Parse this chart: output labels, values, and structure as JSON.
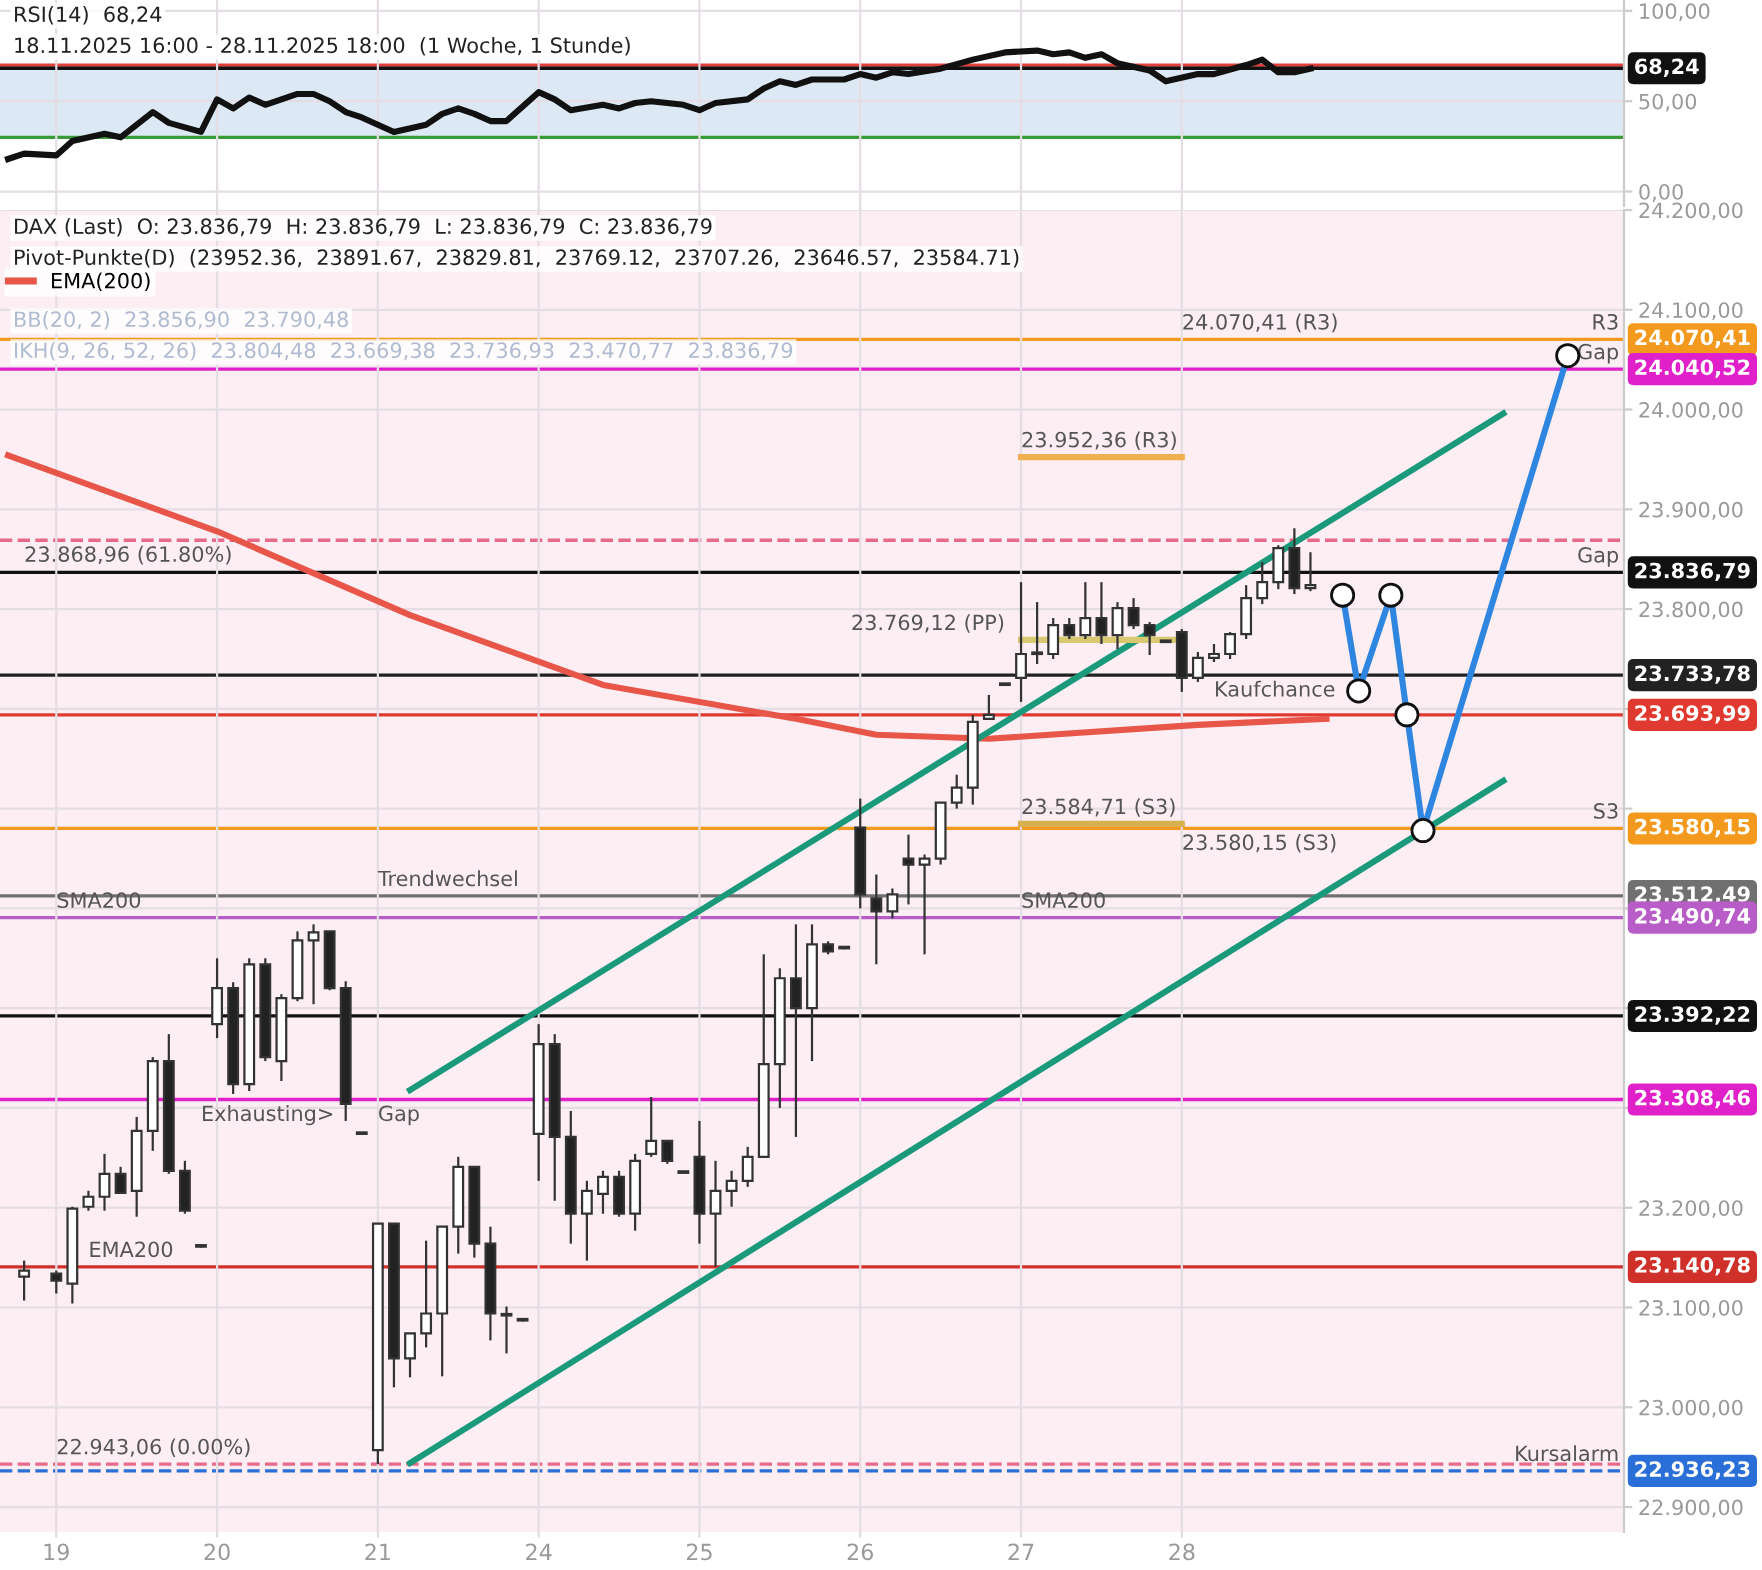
{
  "chart_data": [
    {
      "type": "line",
      "title": "RSI(14)  68,24",
      "subtitle": "18.11.2025 16:00 - 28.11.2025 18:00  (1 Woche, 1 Stunde)",
      "categories": [
        null,
        null,
        null,
        "19",
        null,
        null,
        null,
        null,
        null,
        null,
        null,
        null,
        null,
        "20",
        null,
        null,
        null,
        null,
        null,
        null,
        null,
        null,
        null,
        "21",
        null,
        null,
        null,
        null,
        null,
        null,
        null,
        null,
        null,
        "24",
        null,
        null,
        null,
        null,
        null,
        null,
        null,
        null,
        null,
        "25",
        null,
        null,
        null,
        null,
        null,
        null,
        null,
        null,
        null,
        "26",
        null,
        null,
        null,
        null,
        null,
        null,
        null,
        null,
        null,
        "27",
        null,
        null,
        null,
        null,
        null,
        null,
        null,
        null,
        null,
        "28",
        null,
        null,
        null,
        null,
        null,
        null,
        null,
        null,
        null,
        null,
        null,
        null,
        null,
        null,
        null,
        null,
        null,
        null,
        null,
        null,
        null,
        null,
        null,
        null,
        null,
        null,
        null
      ],
      "ylim": [
        -8,
        106
      ],
      "yticks": [
        {
          "value": 0,
          "label": "0,00"
        },
        {
          "value": 50,
          "label": "50,00"
        },
        {
          "value": 100,
          "label": "100,00"
        }
      ],
      "tick_labels": "y",
      "grid": true,
      "bands": [
        {
          "axis": "y",
          "from": 30,
          "to": 70,
          "color": "#dce8f4"
        }
      ],
      "ref_lines": [
        {
          "axis": "y",
          "value": 70,
          "color": "#e0403a"
        },
        {
          "axis": "y",
          "value": 30,
          "color": "#3a9a3a"
        },
        {
          "axis": "y",
          "value": 68.24,
          "label": "68,24",
          "color": "#111111"
        }
      ],
      "series": [
        {
          "color": "#111111",
          "values": [
            18,
            21,
            null,
            20,
            28,
            null,
            32,
            30,
            null,
            44,
            38,
            null,
            33,
            51,
            46,
            52,
            48,
            null,
            54,
            54,
            50,
            44,
            41,
            null,
            33,
            null,
            37,
            43,
            46,
            43,
            39,
            39,
            null,
            55,
            51,
            45,
            null,
            48,
            46,
            49,
            50,
            null,
            48,
            45,
            49,
            null,
            51,
            57,
            61,
            59,
            62,
            null,
            62,
            65,
            63,
            66,
            65,
            null,
            68,
            null,
            73,
            null,
            77,
            null,
            78,
            76,
            77,
            74,
            76,
            71,
            null,
            67,
            61,
            null,
            65,
            65,
            null,
            70,
            73,
            66,
            66,
            68,
            null,
            null,
            null,
            null,
            null,
            null,
            null,
            null,
            null,
            null,
            null,
            null,
            null,
            null,
            null,
            null,
            null,
            null,
            null
          ]
        }
      ]
    },
    {
      "type": "candlestick",
      "title": "DAX (Last)  O: 23.836,79  H: 23.836,79  L: 23.836,79  C: 23.836,79",
      "subtitle": "Pivot-Punkte(D)  (23952.36,  23891.67,  23829.81,  23769.12,  23707.26,  23646.57,  23584.71)",
      "legend": "top left",
      "categories": [
        null,
        null,
        null,
        "19",
        null,
        null,
        null,
        null,
        null,
        null,
        null,
        null,
        null,
        "20",
        null,
        null,
        null,
        null,
        null,
        null,
        null,
        null,
        null,
        "21",
        null,
        null,
        null,
        null,
        null,
        null,
        null,
        null,
        null,
        "24",
        null,
        null,
        null,
        null,
        null,
        null,
        null,
        null,
        null,
        "25",
        null,
        null,
        null,
        null,
        null,
        null,
        null,
        null,
        null,
        "26",
        null,
        null,
        null,
        null,
        null,
        null,
        null,
        null,
        null,
        "27",
        null,
        null,
        null,
        null,
        null,
        null,
        null,
        null,
        null,
        "28",
        null,
        null,
        null,
        null,
        null,
        null,
        null,
        null,
        null,
        null,
        null,
        null,
        null,
        null,
        null,
        null,
        null,
        null,
        null,
        null,
        null,
        null,
        null,
        null,
        null,
        null,
        null
      ],
      "ylim": [
        22875,
        24200
      ],
      "yticks": [
        {
          "value": 22900,
          "label": "22.900,00"
        },
        {
          "value": 23000,
          "label": "23.000,00"
        },
        {
          "value": 23100,
          "label": "23.100,00"
        },
        {
          "value": 23200,
          "label": "23.200,00"
        },
        {
          "value": 23300,
          "label": null
        },
        {
          "value": 23400,
          "label": null
        },
        {
          "value": 23500,
          "label": null
        },
        {
          "value": 23600,
          "label": null
        },
        {
          "value": 23700,
          "label": null
        },
        {
          "value": 23800,
          "label": "23.800,00"
        },
        {
          "value": 23900,
          "label": "23.900,00"
        },
        {
          "value": 24000,
          "label": "24.000,00"
        },
        {
          "value": 24100,
          "label": "24.100,00"
        },
        {
          "value": 24200,
          "label": "24.200,00"
        }
      ],
      "grid": true,
      "ohlc": [
        null,
        [
          23131,
          23147,
          23107,
          23137
        ],
        null,
        [
          23134,
          23137,
          23114,
          23127
        ],
        [
          23124,
          23201,
          23104,
          23199
        ],
        [
          23201,
          23217,
          23197,
          23211
        ],
        [
          23211,
          23254,
          23197,
          23234
        ],
        [
          23234,
          23241,
          23214,
          23215
        ],
        [
          23217,
          23291,
          23191,
          23277
        ],
        [
          23277,
          23351,
          23257,
          23347
        ],
        [
          23347,
          23374,
          23234,
          23237
        ],
        [
          23237,
          23247,
          23194,
          23197
        ],
        [
          23161,
          23162,
          23160,
          23161
        ],
        [
          23384,
          23450,
          23370,
          23420
        ],
        [
          23420,
          23426,
          23314,
          23324
        ],
        [
          23324,
          23450,
          23317,
          23444
        ],
        [
          23444,
          23450,
          23347,
          23351
        ],
        [
          23347,
          23414,
          23327,
          23410
        ],
        [
          23410,
          23477,
          23407,
          23468
        ],
        [
          23468,
          23484,
          23404,
          23476
        ],
        [
          23477,
          23477,
          23418,
          23420
        ],
        [
          23420,
          23427,
          23287,
          23304
        ],
        [
          23274,
          23275,
          23273,
          23274
        ],
        [
          22957,
          23184,
          22943,
          23184
        ],
        [
          23184,
          23184,
          23020,
          23049
        ],
        [
          23049,
          23074,
          23030,
          23074
        ],
        [
          23074,
          23167,
          23060,
          23094
        ],
        [
          23094,
          23181,
          23031,
          23181
        ],
        [
          23181,
          23251,
          23154,
          23241
        ],
        [
          23241,
          23241,
          23150,
          23164
        ],
        [
          23164,
          23181,
          23067,
          23094
        ],
        [
          23092,
          23101,
          23054,
          23092
        ],
        [
          23087,
          23088,
          23086,
          23087
        ],
        [
          23274,
          23384,
          23227,
          23364
        ],
        [
          23364,
          23374,
          23207,
          23271
        ],
        [
          23271,
          23297,
          23164,
          23194
        ],
        [
          23194,
          23227,
          23147,
          23217
        ],
        [
          23214,
          23237,
          23194,
          23231
        ],
        [
          23231,
          23237,
          23191,
          23194
        ],
        [
          23194,
          23254,
          23177,
          23247
        ],
        [
          23254,
          23311,
          23251,
          23267
        ],
        [
          23267,
          23267,
          23244,
          23247
        ],
        [
          23235,
          23236,
          23234,
          23235
        ],
        [
          23251,
          23287,
          23164,
          23194
        ],
        [
          23194,
          23247,
          23141,
          23217
        ],
        [
          23217,
          23237,
          23201,
          23227
        ],
        [
          23227,
          23261,
          23221,
          23251
        ],
        [
          23251,
          23454,
          23251,
          23344
        ],
        [
          23344,
          23440,
          23300,
          23430
        ],
        [
          23430,
          23484,
          23271,
          23400
        ],
        [
          23400,
          23484,
          23347,
          23464
        ],
        [
          23464,
          23467,
          23454,
          23457
        ],
        [
          23460,
          23461,
          23459,
          23460
        ],
        [
          23581,
          23610,
          23500,
          23514
        ],
        [
          23510,
          23534,
          23444,
          23497
        ],
        [
          23497,
          23520,
          23490,
          23514
        ],
        [
          23550,
          23574,
          23504,
          23544
        ],
        [
          23544,
          23554,
          23454,
          23550
        ],
        [
          23550,
          23606,
          23544,
          23606
        ],
        [
          23606,
          23634,
          23600,
          23621
        ],
        [
          23621,
          23694,
          23604,
          23687
        ],
        [
          23690,
          23714,
          23690,
          23694
        ],
        [
          23724,
          23725,
          23723,
          23724
        ],
        [
          23731,
          23827,
          23707,
          23755
        ],
        [
          23755,
          23807,
          23745,
          23755
        ],
        [
          23755,
          23791,
          23750,
          23784
        ],
        [
          23784,
          23791,
          23770,
          23774
        ],
        [
          23774,
          23827,
          23770,
          23791
        ],
        [
          23791,
          23827,
          23765,
          23774
        ],
        [
          23774,
          23807,
          23760,
          23801
        ],
        [
          23801,
          23811,
          23780,
          23784
        ],
        [
          23784,
          23787,
          23754,
          23774
        ],
        [
          23767,
          23768,
          23766,
          23767
        ],
        [
          23777,
          23780,
          23717,
          23731
        ],
        [
          23731,
          23757,
          23727,
          23751
        ],
        [
          23751,
          23765,
          23747,
          23755
        ],
        [
          23755,
          23777,
          23750,
          23775
        ],
        [
          23775,
          23824,
          23770,
          23811
        ],
        [
          23811,
          23847,
          23805,
          23827
        ],
        [
          23827,
          23864,
          23820,
          23861
        ],
        [
          23861,
          23881,
          23815,
          23821
        ],
        [
          23821,
          23857,
          23818,
          23824
        ],
        null,
        null,
        null,
        null,
        null,
        null,
        null,
        null,
        null,
        null,
        null,
        null,
        null,
        null,
        null,
        null,
        null,
        null,
        null
      ],
      "series": [
        {
          "type": "line",
          "name": "EMA(200)",
          "color": "#e8564a",
          "values": [
            23954,
            null,
            null,
            null,
            null,
            null,
            null,
            null,
            null,
            null,
            null,
            null,
            null,
            23878,
            null,
            null,
            null,
            null,
            null,
            null,
            null,
            null,
            null,
            null,
            null,
            23794,
            null,
            null,
            null,
            null,
            null,
            null,
            null,
            null,
            null,
            null,
            null,
            23724,
            null,
            null,
            null,
            null,
            null,
            null,
            null,
            null,
            null,
            null,
            null,
            23690,
            null,
            null,
            null,
            null,
            23674,
            null,
            null,
            null,
            null,
            null,
            null,
            23670,
            null,
            null,
            null,
            null,
            null,
            null,
            null,
            null,
            null,
            null,
            null,
            null,
            23684,
            null,
            null,
            null,
            null,
            null,
            null,
            null,
            23690,
            null,
            null,
            null,
            null,
            null,
            null,
            null,
            null,
            null,
            null,
            null,
            null,
            null,
            null,
            null,
            null,
            null,
            null
          ]
        },
        {
          "type": "line",
          "color": "#1a9a7a",
          "values": [
            null,
            null,
            null,
            null,
            null,
            null,
            null,
            null,
            null,
            null,
            null,
            null,
            null,
            null,
            null,
            null,
            null,
            null,
            null,
            null,
            null,
            null,
            null,
            null,
            null,
            22944,
            null,
            null,
            null,
            null,
            null,
            null,
            null,
            null,
            null,
            null,
            null,
            null,
            null,
            null,
            null,
            null,
            null,
            null,
            null,
            null,
            null,
            null,
            null,
            null,
            null,
            null,
            null,
            null,
            null,
            null,
            null,
            null,
            null,
            null,
            null,
            null,
            null,
            null,
            null,
            null,
            null,
            null,
            null,
            null,
            null,
            null,
            null,
            null,
            null,
            null,
            null,
            null,
            null,
            null,
            null,
            null,
            null,
            null,
            null,
            null,
            null,
            null,
            null,
            null,
            null,
            null,
            null,
            23628,
            null,
            null,
            null,
            null,
            null,
            null,
            null
          ]
        },
        {
          "type": "line",
          "color": "#1a9a7a",
          "values": [
            null,
            null,
            null,
            null,
            null,
            null,
            null,
            null,
            null,
            null,
            null,
            null,
            null,
            null,
            null,
            null,
            null,
            null,
            null,
            null,
            null,
            null,
            null,
            null,
            null,
            23318,
            null,
            null,
            null,
            null,
            null,
            null,
            null,
            null,
            null,
            null,
            null,
            null,
            null,
            null,
            null,
            null,
            null,
            null,
            null,
            null,
            null,
            null,
            null,
            null,
            null,
            null,
            null,
            null,
            null,
            null,
            null,
            null,
            null,
            null,
            null,
            null,
            null,
            null,
            null,
            null,
            null,
            null,
            null,
            null,
            null,
            null,
            null,
            null,
            null,
            null,
            null,
            null,
            null,
            null,
            null,
            null,
            null,
            null,
            null,
            null,
            null,
            null,
            null,
            null,
            null,
            null,
            null,
            23996,
            null,
            null,
            null,
            null,
            null,
            null,
            null
          ]
        },
        {
          "type": "line",
          "color": "#f0b050",
          "values": [
            null,
            null,
            null,
            null,
            null,
            null,
            null,
            null,
            null,
            null,
            null,
            null,
            null,
            null,
            null,
            null,
            null,
            null,
            null,
            null,
            null,
            null,
            null,
            null,
            null,
            null,
            null,
            null,
            null,
            null,
            null,
            null,
            null,
            null,
            null,
            null,
            null,
            null,
            null,
            null,
            null,
            null,
            null,
            null,
            null,
            null,
            null,
            null,
            null,
            null,
            null,
            null,
            null,
            null,
            null,
            null,
            null,
            null,
            null,
            null,
            null,
            null,
            null,
            23952.36,
            null,
            null,
            null,
            null,
            null,
            null,
            null,
            null,
            null,
            23952.36,
            null,
            null,
            null,
            null,
            null,
            null,
            null,
            null,
            null,
            null,
            null,
            null,
            null,
            null,
            null,
            null,
            null,
            null,
            null,
            null,
            null,
            null,
            null,
            null,
            null,
            null,
            null
          ]
        },
        {
          "type": "line",
          "color": "#d8c870",
          "values": [
            null,
            null,
            null,
            null,
            null,
            null,
            null,
            null,
            null,
            null,
            null,
            null,
            null,
            null,
            null,
            null,
            null,
            null,
            null,
            null,
            null,
            null,
            null,
            null,
            null,
            null,
            null,
            null,
            null,
            null,
            null,
            null,
            null,
            null,
            null,
            null,
            null,
            null,
            null,
            null,
            null,
            null,
            null,
            null,
            null,
            null,
            null,
            null,
            null,
            null,
            null,
            null,
            null,
            null,
            null,
            null,
            null,
            null,
            null,
            null,
            null,
            null,
            null,
            23769.12,
            null,
            null,
            null,
            null,
            null,
            null,
            null,
            null,
            null,
            23769.12,
            null,
            null,
            null,
            null,
            null,
            null,
            null,
            null,
            null,
            null,
            null,
            null,
            null,
            null,
            null,
            null,
            null,
            null,
            null,
            null,
            null,
            null,
            null,
            null,
            null,
            null,
            null
          ]
        },
        {
          "type": "line",
          "color": "#d8b050",
          "values": [
            null,
            null,
            null,
            null,
            null,
            null,
            null,
            null,
            null,
            null,
            null,
            null,
            null,
            null,
            null,
            null,
            null,
            null,
            null,
            null,
            null,
            null,
            null,
            null,
            null,
            null,
            null,
            null,
            null,
            null,
            null,
            null,
            null,
            null,
            null,
            null,
            null,
            null,
            null,
            null,
            null,
            null,
            null,
            null,
            null,
            null,
            null,
            null,
            null,
            null,
            null,
            null,
            null,
            null,
            null,
            null,
            null,
            null,
            null,
            null,
            null,
            null,
            null,
            23584.71,
            null,
            null,
            null,
            null,
            null,
            null,
            null,
            null,
            null,
            23584.71,
            null,
            null,
            null,
            null,
            null,
            null,
            null,
            null,
            null,
            null,
            null,
            null,
            null,
            null,
            null,
            null,
            null,
            null,
            null,
            null,
            null,
            null,
            null,
            null,
            null,
            null,
            null
          ]
        },
        {
          "type": "line",
          "color": "#2f86e0",
          "marker": "circle",
          "values": [
            null,
            null,
            null,
            null,
            null,
            null,
            null,
            null,
            null,
            null,
            null,
            null,
            null,
            null,
            null,
            null,
            null,
            null,
            null,
            null,
            null,
            null,
            null,
            null,
            null,
            null,
            null,
            null,
            null,
            null,
            null,
            null,
            null,
            null,
            null,
            null,
            null,
            null,
            null,
            null,
            null,
            null,
            null,
            null,
            null,
            null,
            null,
            null,
            null,
            null,
            null,
            null,
            null,
            null,
            null,
            null,
            null,
            null,
            null,
            null,
            null,
            null,
            null,
            null,
            null,
            null,
            null,
            null,
            null,
            null,
            null,
            null,
            null,
            null,
            null,
            null,
            null,
            null,
            null,
            null,
            null,
            null,
            null,
            23814,
            23718,
            null,
            23814,
            23694,
            23578,
            null,
            null,
            null,
            null,
            null,
            null,
            null,
            null,
            24054,
            null,
            null,
            null
          ]
        }
      ],
      "ref_lines": [
        {
          "axis": "y",
          "value": 24070.41,
          "label": "24.070,41",
          "color": "#f39a1e"
        },
        {
          "axis": "y",
          "value": 24040.52,
          "label": "24.040,52",
          "color": "#e020c8"
        },
        {
          "axis": "y",
          "value": 23868.96,
          "color": "#e86a8a",
          "line_style": "dashed"
        },
        {
          "axis": "y",
          "value": 23836.79,
          "label": "23.836,79",
          "color": "#111111"
        },
        {
          "axis": "y",
          "value": 23733.78,
          "label": "23.733,78",
          "color": "#222222"
        },
        {
          "axis": "y",
          "value": 23693.99,
          "label": "23.693,99",
          "color": "#e03a30"
        },
        {
          "axis": "y",
          "value": 23580.15,
          "label": "23.580,15",
          "color": "#f39a1e"
        },
        {
          "axis": "y",
          "value": 23512.49,
          "label": "23.512,49",
          "color": "#707070"
        },
        {
          "axis": "y",
          "value": 23490.74,
          "label": "23.490,74",
          "color": "#b85cc8"
        },
        {
          "axis": "y",
          "value": 23392.22,
          "label": "23.392,22",
          "color": "#111111"
        },
        {
          "axis": "y",
          "value": 23308.46,
          "label": "23.308,46",
          "color": "#e020c8"
        },
        {
          "axis": "y",
          "value": 23140.78,
          "label": "23.140,78",
          "color": "#d0302a"
        },
        {
          "axis": "y",
          "value": 22943.06,
          "color": "#e86a8a",
          "line_style": "dashed"
        },
        {
          "axis": "y",
          "value": 22936.23,
          "label": "22.936,23",
          "color": "#2a6fd8",
          "line_style": "dashed"
        }
      ],
      "annotations": [
        "BB(20, 2)  23.856,90  23.790,48",
        "IKH(9, 26, 52, 26)  23.804,48  23.669,38  23.736,93  23.470,77  23.836,79",
        {
          "text": "R3",
          "y": 24070.41
        },
        {
          "text": "Gap",
          "y": 24040.52
        },
        {
          "text": "24.070,41 (R3)",
          "x": "28",
          "y": 24070.41
        },
        {
          "text": "23.952,36 (R3)",
          "x": "27",
          "y": 23952.36
        },
        {
          "text": "Gap",
          "y": 23836.79
        },
        {
          "text": "23.769,12 (PP)",
          "x": "27",
          "y": 23769.12
        },
        {
          "text": "Kaufchance",
          "x": "28",
          "y": 23733.78
        },
        {
          "text": "23.584,71 (S3)",
          "x": "27",
          "y": 23584.71
        },
        {
          "text": "23.580,15 (S3)",
          "x": "28",
          "y": 23580.15
        },
        {
          "text": "S3",
          "y": 23580.15
        },
        {
          "text": "SMA200",
          "x": "27",
          "y": 23490.74
        },
        {
          "text": "SMA200",
          "x": "19",
          "y": 23490.74
        },
        {
          "text": "EMA200",
          "x": "19",
          "y": 23140.78
        },
        {
          "text": "Trendwechsel",
          "x": "21",
          "y": 23512.49
        },
        {
          "text": "Exhausting>",
          "x": "20",
          "y": 23308.46
        },
        {
          "text": "Gap",
          "x": "21",
          "y": 23308.46
        },
        {
          "text": "23.868,96 (61.80%)",
          "x": "19",
          "y": 23868.96
        },
        {
          "text": "22.943,06 (0.00%)",
          "x": "19",
          "y": 22943.06
        },
        {
          "text": "Kursalarm",
          "y": 22936.23
        }
      ]
    }
  ]
}
